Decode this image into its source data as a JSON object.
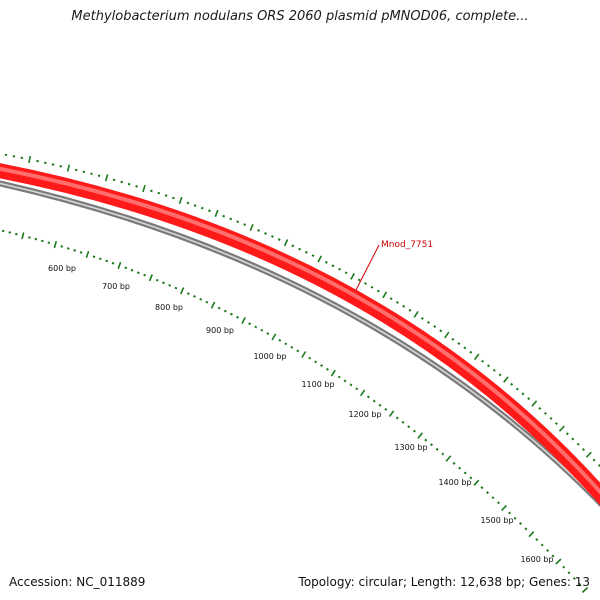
{
  "title": "Methylobacterium nodulans ORS 2060 plasmid pMNOD06, complete...",
  "accession": "Accession: NC_011889",
  "summary": "Topology: circular; Length: 12,638 bp; Genes: 13",
  "colors": {
    "gene": "#ff1a1a",
    "gene_highlight": "#ff7777",
    "backbone": "#7a7a7a",
    "ticks": "#1a7a1a",
    "label": "#cc0000"
  },
  "gene_label": "Mnod_7751",
  "scale_labels": [
    "600 bp",
    "700 bp",
    "800 bp",
    "900 bp",
    "1000 bp",
    "1100 bp",
    "1200 bp",
    "1300 bp",
    "1400 bp",
    "1500 bp",
    "1600 bp"
  ]
}
